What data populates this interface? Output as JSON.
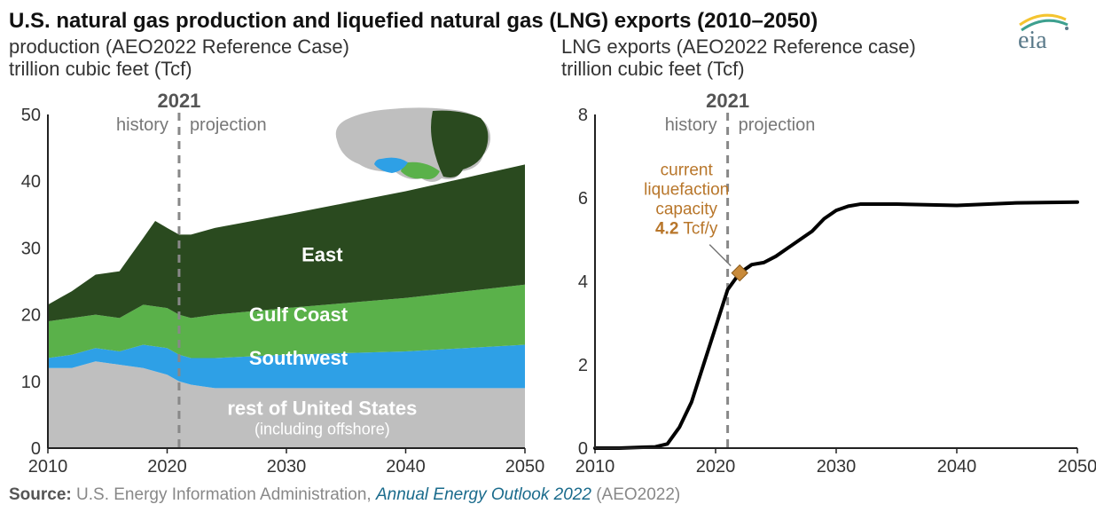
{
  "title": "U.S. natural gas production and liquefied natural gas (LNG) exports (2010–2050)",
  "logo": {
    "text": "eia",
    "arc_color1": "#f4c430",
    "arc_color2": "#3da08f",
    "text_color": "#5a7a8a"
  },
  "source": {
    "label": "Source:",
    "text1": " U.S. Energy Information Administration, ",
    "italic": "Annual Energy Outlook 2022",
    "text2": " (AEO2022)"
  },
  "chart_left": {
    "subtitle1": "production (AEO2022 Reference Case)",
    "subtitle2": "trillion cubic feet (Tcf)",
    "type": "stacked-area",
    "xlim": [
      2010,
      2050
    ],
    "ylim": [
      0,
      50
    ],
    "ytick_step": 10,
    "xtick_step": 10,
    "marker_year": 2021,
    "marker_label": "2021",
    "history_label": "history",
    "projection_label": "projection",
    "axis_color": "#222",
    "dash_color": "#888",
    "series": [
      {
        "name": "rest of United States",
        "sublabel": "(including offshore)",
        "color": "#bfbfbf",
        "label_x": 2033,
        "label_y": 5,
        "values": [
          [
            2010,
            12
          ],
          [
            2012,
            12
          ],
          [
            2014,
            13
          ],
          [
            2016,
            12.5
          ],
          [
            2018,
            12
          ],
          [
            2020,
            11
          ],
          [
            2021,
            10
          ],
          [
            2022,
            9.5
          ],
          [
            2024,
            9
          ],
          [
            2030,
            9
          ],
          [
            2040,
            9
          ],
          [
            2050,
            9
          ]
        ]
      },
      {
        "name": "Southwest",
        "color": "#2ea0e6",
        "label_x": 2031,
        "label_y": 12.5,
        "values": [
          [
            2010,
            1.5
          ],
          [
            2012,
            2
          ],
          [
            2014,
            2
          ],
          [
            2016,
            2
          ],
          [
            2018,
            3.5
          ],
          [
            2020,
            4
          ],
          [
            2021,
            4
          ],
          [
            2022,
            4
          ],
          [
            2024,
            4.5
          ],
          [
            2030,
            5
          ],
          [
            2040,
            5.5
          ],
          [
            2050,
            6.5
          ]
        ]
      },
      {
        "name": "Gulf Coast",
        "color": "#5ab14a",
        "label_x": 2031,
        "label_y": 19,
        "values": [
          [
            2010,
            5.5
          ],
          [
            2012,
            5.5
          ],
          [
            2014,
            5
          ],
          [
            2016,
            5
          ],
          [
            2018,
            6
          ],
          [
            2020,
            6
          ],
          [
            2021,
            6
          ],
          [
            2022,
            6
          ],
          [
            2024,
            6.5
          ],
          [
            2030,
            7
          ],
          [
            2040,
            8
          ],
          [
            2050,
            9
          ]
        ]
      },
      {
        "name": "East",
        "color": "#2a4a1f",
        "label_x": 2033,
        "label_y": 28,
        "values": [
          [
            2010,
            2.5
          ],
          [
            2012,
            4
          ],
          [
            2014,
            6
          ],
          [
            2016,
            7
          ],
          [
            2018,
            10
          ],
          [
            2019,
            12.8
          ],
          [
            2020,
            12
          ],
          [
            2021,
            12
          ],
          [
            2022,
            12.5
          ],
          [
            2024,
            13
          ],
          [
            2030,
            14
          ],
          [
            2040,
            16
          ],
          [
            2050,
            18
          ]
        ]
      }
    ],
    "map": {
      "base_color": "#bfbfbf",
      "southwest_color": "#2ea0e6",
      "gulf_color": "#5ab14a",
      "east_color": "#2a4a1f"
    }
  },
  "chart_right": {
    "subtitle1": "LNG exports (AEO2022 Reference case)",
    "subtitle2": "trillion cubic feet (Tcf)",
    "type": "line",
    "xlim": [
      2010,
      2050
    ],
    "ylim": [
      0,
      8
    ],
    "ytick_step": 2,
    "xtick_step": 10,
    "marker_year": 2021,
    "marker_label": "2021",
    "history_label": "history",
    "projection_label": "projection",
    "line_color": "#000000",
    "line_width": 4,
    "axis_color": "#222",
    "dash_color": "#888",
    "annotation": {
      "lines": [
        "current",
        "liquefaction",
        "capacity"
      ],
      "value": "4.2",
      "unit": " Tcf/y",
      "marker_year": 2022,
      "marker_value": 4.2,
      "marker_color": "#c88a3a",
      "text_color": "#b8762a"
    },
    "values": [
      [
        2010,
        0
      ],
      [
        2012,
        0
      ],
      [
        2014,
        0.02
      ],
      [
        2015,
        0.03
      ],
      [
        2016,
        0.1
      ],
      [
        2017,
        0.5
      ],
      [
        2018,
        1.1
      ],
      [
        2019,
        2.0
      ],
      [
        2020,
        2.9
      ],
      [
        2021,
        3.8
      ],
      [
        2022,
        4.2
      ],
      [
        2023,
        4.4
      ],
      [
        2024,
        4.45
      ],
      [
        2025,
        4.6
      ],
      [
        2026,
        4.8
      ],
      [
        2027,
        5.0
      ],
      [
        2028,
        5.2
      ],
      [
        2029,
        5.5
      ],
      [
        2030,
        5.7
      ],
      [
        2031,
        5.8
      ],
      [
        2032,
        5.85
      ],
      [
        2033,
        5.85
      ],
      [
        2035,
        5.85
      ],
      [
        2040,
        5.82
      ],
      [
        2045,
        5.88
      ],
      [
        2050,
        5.9
      ]
    ]
  }
}
